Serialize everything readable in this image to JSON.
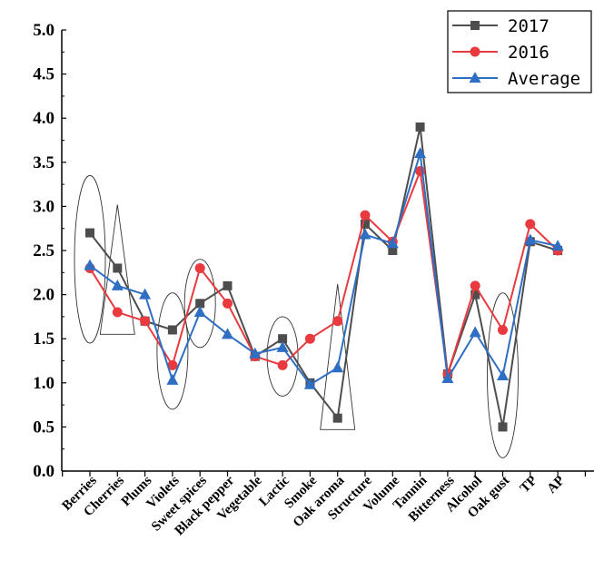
{
  "chart_data": {
    "type": "line",
    "title": "",
    "xlabel": "",
    "ylabel": "",
    "categories": [
      "Berries",
      "Cherries",
      "Plums",
      "Violets",
      "Sweet spices",
      "Black pepper",
      "Vegetable",
      "Lactic",
      "Smoke",
      "Oak aroma",
      "Structure",
      "Volume",
      "Tannin",
      "Bitterness",
      "Alcohol",
      "Oak gust",
      "TP",
      "AP"
    ],
    "ylim": [
      0,
      5
    ],
    "yticks": [
      "0.0",
      "0.5",
      "1.0",
      "1.5",
      "2.0",
      "2.5",
      "3.0",
      "3.5",
      "4.0",
      "4.5",
      "5.0"
    ],
    "grid": false,
    "legend_position": "top-right",
    "series": [
      {
        "name": "2017",
        "color": "#4d4d4d",
        "marker": "square",
        "values": [
          2.7,
          2.3,
          1.7,
          1.6,
          1.9,
          2.1,
          1.3,
          1.5,
          1.0,
          0.6,
          2.8,
          2.5,
          3.9,
          1.1,
          2.0,
          0.5,
          2.6,
          2.5
        ]
      },
      {
        "name": "2016",
        "color": "#e83a3f",
        "marker": "circle",
        "values": [
          2.3,
          1.8,
          1.7,
          1.2,
          2.3,
          1.9,
          1.3,
          1.2,
          1.5,
          1.7,
          2.9,
          2.6,
          3.4,
          1.1,
          2.1,
          1.6,
          2.8,
          2.5
        ]
      },
      {
        "name": "Average",
        "color": "#2e6fc4",
        "marker": "triangle",
        "values": [
          2.33,
          2.1,
          2.0,
          1.03,
          1.8,
          1.55,
          1.33,
          1.4,
          0.98,
          1.17,
          2.68,
          2.58,
          3.6,
          1.05,
          1.57,
          1.08,
          2.62,
          2.55
        ]
      }
    ],
    "annotations": [
      {
        "shape": "ellipse",
        "category": "Berries",
        "yrange": [
          1.45,
          3.35
        ]
      },
      {
        "shape": "triangle",
        "category": "Cherries",
        "yrange": [
          1.55,
          3.02
        ]
      },
      {
        "shape": "ellipse",
        "category": "Violets",
        "yrange": [
          0.7,
          2.02
        ]
      },
      {
        "shape": "ellipse",
        "category": "Sweet spices",
        "yrange": [
          1.4,
          2.4
        ]
      },
      {
        "shape": "ellipse",
        "category": "Lactic",
        "yrange": [
          0.85,
          1.75
        ]
      },
      {
        "shape": "triangle",
        "category": "Oak aroma",
        "yrange": [
          0.47,
          2.12
        ]
      },
      {
        "shape": "ellipse",
        "category": "Oak gust",
        "yrange": [
          0.15,
          2.02
        ]
      }
    ]
  }
}
